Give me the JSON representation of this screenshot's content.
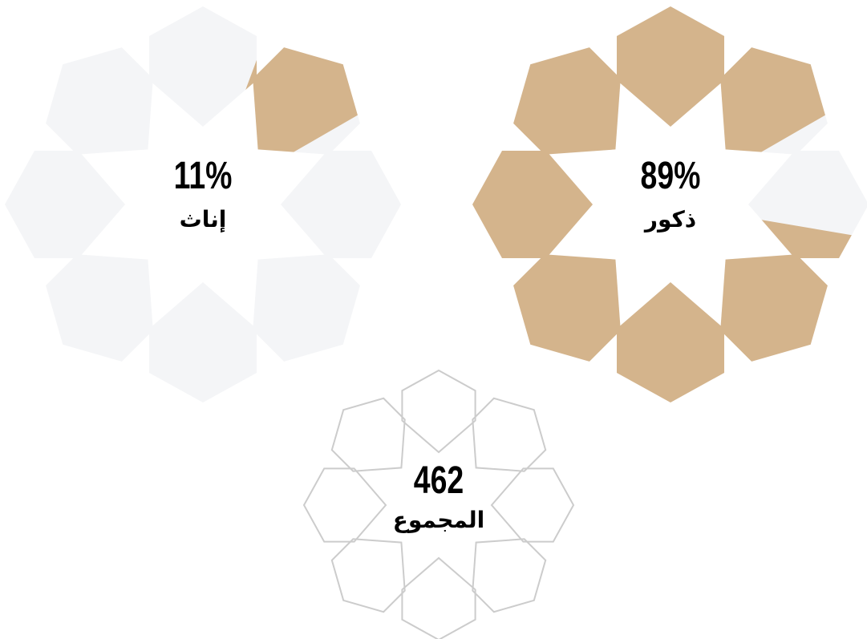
{
  "chart_data": [
    {
      "type": "pie",
      "values": [
        11
      ],
      "value_labels": [
        "11%"
      ],
      "categories": [
        "إناث"
      ],
      "color": "#d4b48c",
      "empty_color": "#f4f5f7"
    },
    {
      "type": "pie",
      "values": [
        89
      ],
      "value_labels": [
        "89%"
      ],
      "categories": [
        "ذكور"
      ],
      "color": "#d4b48c",
      "empty_color": "#f4f5f7"
    },
    {
      "type": "total",
      "values": [
        462
      ],
      "categories": [
        "المجموع"
      ],
      "color": "#cccccc"
    }
  ]
}
